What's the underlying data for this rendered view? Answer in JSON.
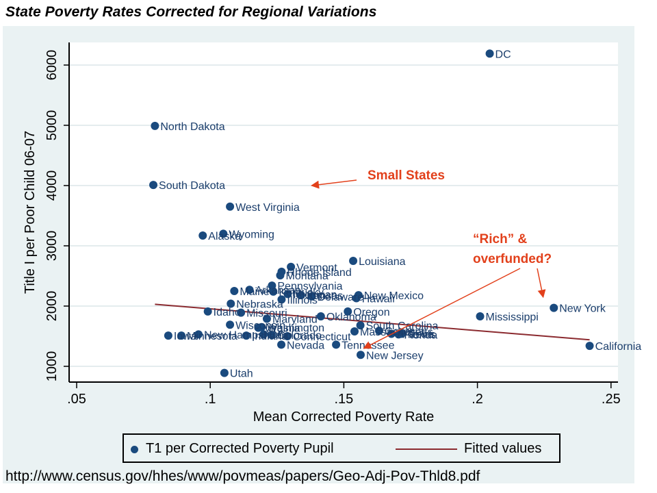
{
  "page": {
    "title": "State Poverty Rates Corrected for Regional Variations",
    "source": "http://www.census.gov/hhes/www/povmeas/papers/Geo-Adj-Pov-Thld8.pdf"
  },
  "colors": {
    "point": "#1a4a7e",
    "label": "#1a3d6b",
    "fit_line": "#8b2a2f",
    "annotation": "#e2401b",
    "frame_bg": "#eaf2f3",
    "grid": "#e4ecee"
  },
  "legend": {
    "items": [
      {
        "label": "T1 per Corrected Poverty Pupil",
        "kind": "marker"
      },
      {
        "label": "Fitted values",
        "kind": "line"
      }
    ]
  },
  "chart_data": {
    "type": "scatter",
    "title": "State Poverty Rates Corrected for Regional Variations",
    "xlabel": "Mean Corrected Poverty Rate",
    "ylabel": "Title I per Poor Child 06-07",
    "xlim": [
      0.047,
      0.255
    ],
    "ylim": [
      780,
      6380
    ],
    "xticks": [
      0.05,
      0.1,
      0.15,
      0.2,
      0.25
    ],
    "xtick_labels": [
      ".05",
      ".1",
      ".15",
      ".2",
      ".25"
    ],
    "yticks": [
      1000,
      2000,
      3000,
      4000,
      5000,
      6000
    ],
    "ytick_labels": [
      "1000",
      "2000",
      "3000",
      "4000",
      "5000",
      "6000"
    ],
    "grid": true,
    "legend_position": "bottom",
    "series": [
      {
        "name": "T1 per Corrected Poverty Pupil",
        "points": [
          {
            "label": "DC",
            "x": 0.2046,
            "y": 6190
          },
          {
            "label": "North Dakota",
            "x": 0.0793,
            "y": 4990
          },
          {
            "label": "South Dakota",
            "x": 0.0787,
            "y": 4010
          },
          {
            "label": "West Virginia",
            "x": 0.1074,
            "y": 3650
          },
          {
            "label": "Wyoming",
            "x": 0.1049,
            "y": 3200
          },
          {
            "label": "Alaska",
            "x": 0.0972,
            "y": 3170
          },
          {
            "label": "Louisiana",
            "x": 0.1535,
            "y": 2750
          },
          {
            "label": "Vermont",
            "x": 0.1302,
            "y": 2650
          },
          {
            "label": "Rhode Island",
            "x": 0.1267,
            "y": 2570
          },
          {
            "label": "Montana",
            "x": 0.1262,
            "y": 2510
          },
          {
            "label": "Pennsylvania",
            "x": 0.1231,
            "y": 2340
          },
          {
            "label": "Arkansas",
            "x": 0.1147,
            "y": 2270
          },
          {
            "label": "Maine",
            "x": 0.109,
            "y": 2250
          },
          {
            "label": "Kentucky",
            "x": 0.1236,
            "y": 2240
          },
          {
            "label": "Illinois",
            "x": 0.1267,
            "y": 2110
          },
          {
            "label": "Michigan",
            "x": 0.129,
            "y": 2200
          },
          {
            "label": "Kansas",
            "x": 0.134,
            "y": 2180
          },
          {
            "label": "Delaware",
            "x": 0.138,
            "y": 2160
          },
          {
            "label": "New Mexico",
            "x": 0.1555,
            "y": 2180
          },
          {
            "label": "Hawaii",
            "x": 0.1547,
            "y": 2130
          },
          {
            "label": "Nebraska",
            "x": 0.1077,
            "y": 2040
          },
          {
            "label": "Idaho",
            "x": 0.0991,
            "y": 1910
          },
          {
            "label": "Missouri",
            "x": 0.1115,
            "y": 1890
          },
          {
            "label": "Oregon",
            "x": 0.1515,
            "y": 1910
          },
          {
            "label": "Maryland",
            "x": 0.1212,
            "y": 1790
          },
          {
            "label": "Oklahoma",
            "x": 0.1414,
            "y": 1830
          },
          {
            "label": "Mississippi",
            "x": 0.201,
            "y": 1830
          },
          {
            "label": "New York",
            "x": 0.2286,
            "y": 1970
          },
          {
            "label": "California",
            "x": 0.242,
            "y": 1340
          },
          {
            "label": "Wisconsin",
            "x": 0.1074,
            "y": 1690
          },
          {
            "label": "Washington",
            "x": 0.1192,
            "y": 1650
          },
          {
            "label": "Virginia",
            "x": 0.118,
            "y": 1640
          },
          {
            "label": "South Carolina",
            "x": 0.1562,
            "y": 1680
          },
          {
            "label": "Massachusetts",
            "x": 0.154,
            "y": 1580
          },
          {
            "label": "Georgia",
            "x": 0.1632,
            "y": 1590
          },
          {
            "label": "Arizona",
            "x": 0.1678,
            "y": 1540
          },
          {
            "label": "Florida",
            "x": 0.1705,
            "y": 1530
          },
          {
            "label": "Texas",
            "x": 0.1716,
            "y": 1540
          },
          {
            "label": "Iowa",
            "x": 0.0843,
            "y": 1510
          },
          {
            "label": "Minnesota",
            "x": 0.0892,
            "y": 1510
          },
          {
            "label": "New Hampshire",
            "x": 0.0956,
            "y": 1530
          },
          {
            "label": "Indiana",
            "x": 0.1135,
            "y": 1510
          },
          {
            "label": "Ohio",
            "x": 0.12,
            "y": 1530
          },
          {
            "label": "Colorado",
            "x": 0.123,
            "y": 1520
          },
          {
            "label": "Connecticut",
            "x": 0.1289,
            "y": 1500
          },
          {
            "label": "Nevada",
            "x": 0.1266,
            "y": 1360
          },
          {
            "label": "Tennessee",
            "x": 0.1471,
            "y": 1360
          },
          {
            "label": "New Jersey",
            "x": 0.1563,
            "y": 1190
          },
          {
            "label": "Utah",
            "x": 0.1053,
            "y": 890
          }
        ]
      },
      {
        "name": "Fitted values",
        "type": "line",
        "points": [
          {
            "x": 0.0793,
            "y": 2030
          },
          {
            "x": 0.242,
            "y": 1440
          }
        ]
      }
    ],
    "annotations": [
      {
        "text": "Small States",
        "arrow_to": {
          "x": 0.138,
          "y": 4000
        }
      },
      {
        "text": "“Rich” &",
        "line": 1
      },
      {
        "text": "overfunded?",
        "line": 2,
        "arrows_to": [
          {
            "x": 0.2246,
            "y": 2150
          },
          {
            "x": 0.1575,
            "y": 1300
          }
        ]
      }
    ]
  }
}
